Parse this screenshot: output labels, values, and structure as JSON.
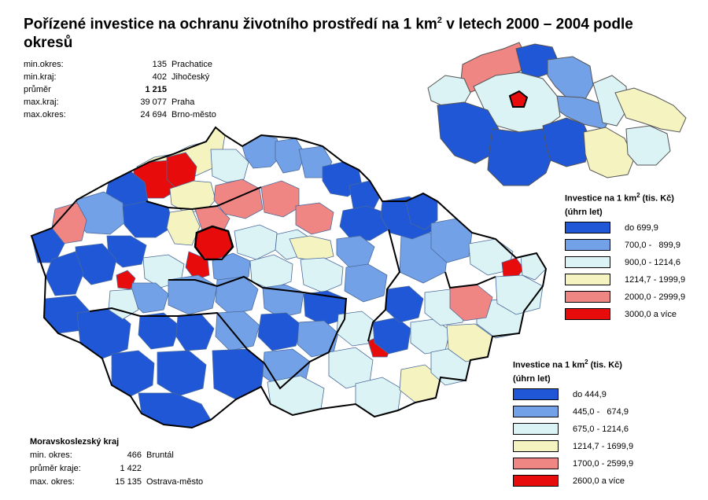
{
  "title": {
    "part1": "Pořízené investice na ochranu životního prostředí na 1 km",
    "sup": "2",
    "part2": " v letech 2000 – 2004 podle okresů"
  },
  "stats": [
    {
      "label": "min.okres:",
      "value": "135",
      "name": "Prachatice",
      "bold": false
    },
    {
      "label": "min.kraj:",
      "value": "402",
      "name": "Jihočeský",
      "bold": false
    },
    {
      "label": "průměr",
      "value": "1 215",
      "name": "",
      "bold": true
    },
    {
      "label": "max.kraj:",
      "value": "39 077",
      "name": "Praha",
      "bold": false
    },
    {
      "label": "max.okres:",
      "value": "24 694",
      "name": "Brno-město",
      "bold": false
    }
  ],
  "kraj_stats": {
    "title": "Moravskoslezský kraj",
    "rows": [
      {
        "label": "min. okres:",
        "value": "466",
        "name": "Bruntál",
        "bold": false
      },
      {
        "label": "průměr kraje:",
        "value": "1 422",
        "name": "",
        "bold": true
      },
      {
        "label": "max. okres:",
        "value": "15 135",
        "name": "Ostrava-město",
        "bold": false
      }
    ]
  },
  "legend_kraje": {
    "title_a": "Investice na 1 km",
    "sup": "2",
    "title_b": " (tis. Kč)",
    "subtitle": "(úhrn let)",
    "items": [
      {
        "range": "do 699,9",
        "color": "#1f57d6"
      },
      {
        "range": "700,0 -   899,9",
        "color": "#73a1e8"
      },
      {
        "range": "900,0 - 1214,6",
        "color": "#dcf3f5"
      },
      {
        "range": "1214,7 - 1999,9",
        "color": "#f5f3c0"
      },
      {
        "range": "2000,0 - 2999,9",
        "color": "#ef8684"
      },
      {
        "range": "3000,0 a více",
        "color": "#e80b0b"
      }
    ]
  },
  "legend_okresy": {
    "title_a": "Investice na 1 km",
    "sup": "2",
    "title_b": " (tis. Kč)",
    "subtitle": "(úhrn let)",
    "items": [
      {
        "range": "do 444,9",
        "color": "#1f57d6"
      },
      {
        "range": "445,0 -   674,9",
        "color": "#73a1e8"
      },
      {
        "range": "675,0 - 1214,6",
        "color": "#dcf3f5"
      },
      {
        "range": "1214,7 - 1699,9",
        "color": "#f5f3c0"
      },
      {
        "range": "1700,0 - 2599,9",
        "color": "#ef8684"
      },
      {
        "range": "2600,0 a více",
        "color": "#e80b0b"
      }
    ]
  }
}
